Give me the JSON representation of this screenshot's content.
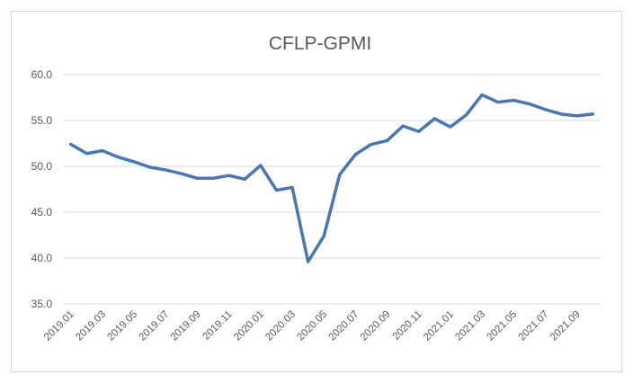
{
  "chart_data": {
    "type": "line",
    "title": "CFLP-GPMI",
    "xlabel": "",
    "ylabel": "",
    "ylim": [
      35,
      60
    ],
    "yticks": [
      "35.0",
      "40.0",
      "45.0",
      "50.0",
      "55.0",
      "60.0"
    ],
    "grid": true,
    "legend": "none",
    "x": [
      "2019.01",
      "2019.02",
      "2019.03",
      "2019.04",
      "2019.05",
      "2019.06",
      "2019.07",
      "2019.08",
      "2019.09",
      "2019.10",
      "2019.11",
      "2019.12",
      "2020.01",
      "2020.02",
      "2020.03",
      "2020.04",
      "2020.05",
      "2020.06",
      "2020.07",
      "2020.08",
      "2020.09",
      "2020.10",
      "2020.11",
      "2020.12",
      "2021.01",
      "2021.02",
      "2021.03",
      "2021.04",
      "2021.05",
      "2021.06",
      "2021.07",
      "2021.08",
      "2021.09",
      "2021.10"
    ],
    "xtick_labels": [
      "2019.01",
      "2019.03",
      "2019.05",
      "2019.07",
      "2019.09",
      "2019.11",
      "2020.01",
      "2020.03",
      "2020.05",
      "2020.07",
      "2020.09",
      "2020.11",
      "2021.01",
      "2021.03",
      "2021.05",
      "2021.07",
      "2021.09"
    ],
    "series": [
      {
        "color": "#4a76b1",
        "values": [
          52.4,
          51.4,
          51.7,
          51.0,
          50.5,
          49.9,
          49.6,
          49.2,
          48.7,
          48.7,
          49.0,
          48.6,
          50.1,
          47.4,
          47.7,
          39.6,
          42.4,
          49.1,
          51.3,
          52.4,
          52.8,
          54.4,
          53.8,
          55.2,
          54.3,
          55.6,
          57.8,
          57.0,
          57.2,
          56.8,
          56.2,
          55.7,
          55.5,
          55.7
        ]
      }
    ]
  }
}
